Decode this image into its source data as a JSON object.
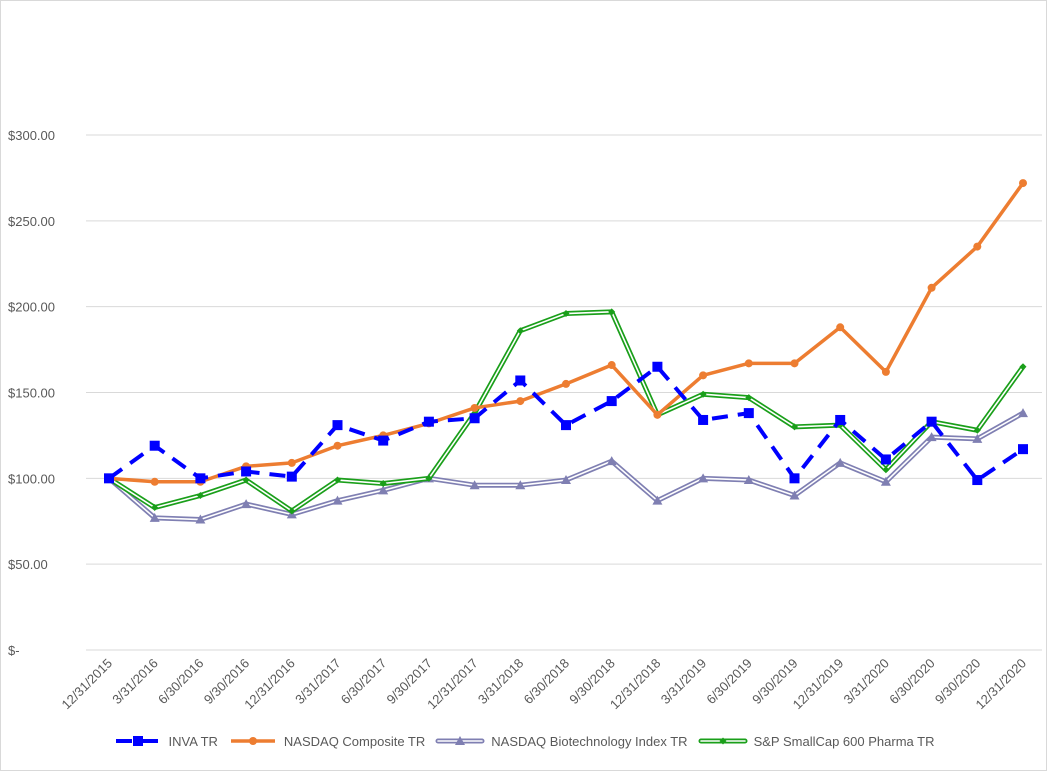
{
  "chart_data": {
    "type": "line",
    "title": "",
    "xlabel": "",
    "ylabel": "",
    "ylim": [
      0,
      300
    ],
    "y_ticks": [
      0,
      50,
      100,
      150,
      200,
      250,
      300
    ],
    "y_tick_labels": [
      "$-",
      "$50.00",
      "$100.00",
      "$150.00",
      "$200.00",
      "$250.00",
      "$300.00"
    ],
    "grid": true,
    "legend_position": "bottom",
    "categories": [
      "12/31/2015",
      "3/31/2016",
      "6/30/2016",
      "9/30/2016",
      "12/31/2016",
      "3/31/2017",
      "6/30/2017",
      "9/30/2017",
      "12/31/2017",
      "3/31/2018",
      "6/30/2018",
      "9/30/2018",
      "12/31/2018",
      "3/31/2019",
      "6/30/2019",
      "9/30/2019",
      "12/31/2019",
      "3/31/2020",
      "6/30/2020",
      "9/30/2020",
      "12/31/2020"
    ],
    "series": [
      {
        "name": "INVA TR",
        "color": "#0000ff",
        "marker": "square",
        "dash": "dashed",
        "values": [
          100,
          119,
          100,
          104,
          101,
          131,
          122,
          133,
          135,
          157,
          131,
          145,
          165,
          134,
          138,
          100,
          134,
          111,
          133,
          99,
          117
        ]
      },
      {
        "name": "NASDAQ Composite TR",
        "color": "#ed7d31",
        "marker": "circle",
        "dash": "solid",
        "values": [
          100,
          98,
          98,
          107,
          109,
          119,
          125,
          132,
          141,
          145,
          155,
          166,
          137,
          160,
          167,
          167,
          188,
          162,
          211,
          235,
          272
        ]
      },
      {
        "name": "NASDAQ Biotechnology Index TR",
        "color": "#7f7fb2",
        "marker": "triangle",
        "dash": "double",
        "values": [
          100,
          77,
          76,
          85,
          79,
          87,
          93,
          100,
          96,
          96,
          99,
          110,
          87,
          100,
          99,
          90,
          109,
          98,
          124,
          123,
          138
        ]
      },
      {
        "name": "S&P SmallCap 600 Pharma TR",
        "color": "#1a9f1a",
        "marker": "diamond",
        "dash": "double",
        "values": [
          100,
          83,
          90,
          99,
          81,
          99,
          97,
          100,
          138,
          186,
          196,
          197,
          137,
          149,
          147,
          130,
          131,
          105,
          133,
          128,
          165
        ]
      }
    ]
  }
}
